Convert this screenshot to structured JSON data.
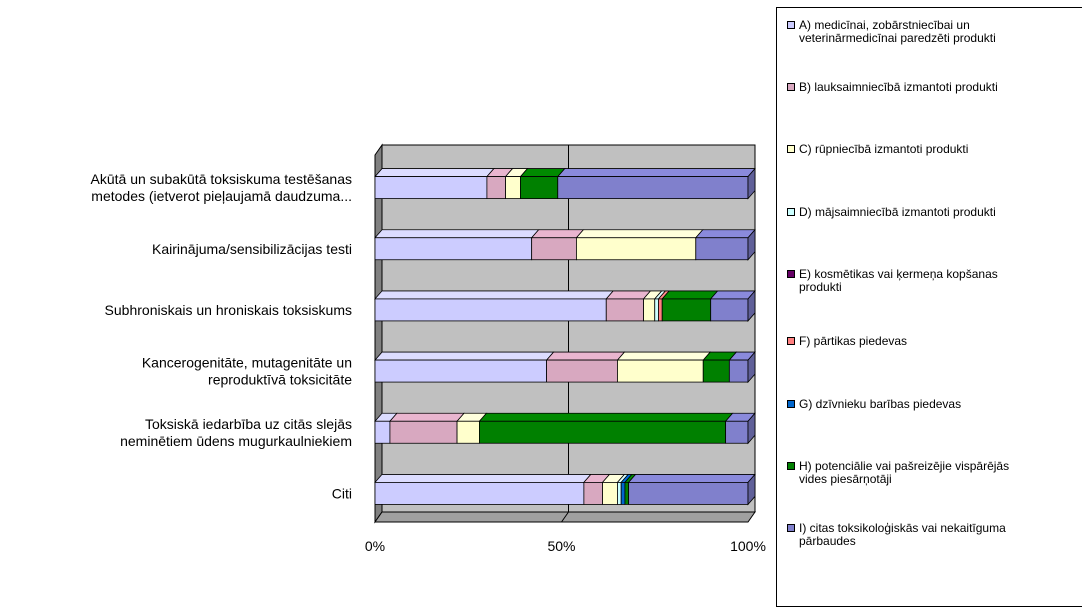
{
  "chart_data": {
    "type": "bar",
    "orientation": "horizontal",
    "stacked": "percent",
    "title": "",
    "xlabel": "",
    "ylabel": "",
    "xlim": [
      0,
      100
    ],
    "x_ticks": [
      "0%",
      "50%",
      "100%"
    ],
    "grid": true,
    "legend_position": "right",
    "categories": [
      "Akūtā un subakūtā toksiskuma testēšanas\nmetodes (ietverot pieļaujamā daudzuma...",
      "Kairinājuma/sensibilizācijas testi",
      "Subhroniskais un hroniskais toksiskums",
      "Kancerogenitāte, mutagenitāte un\nreproduktīvā toksicitāte",
      "Toksiskā iedarbība uz citās slejās\nneminētiem ūdens mugurkaulniekiem",
      "Citi"
    ],
    "series": [
      {
        "name": "A) medicīnai, zobārstniecībai un\nveterinārmedicīnai paredzēti produkti",
        "color": "#ccccff",
        "values": [
          30,
          42,
          62,
          46,
          4,
          56
        ]
      },
      {
        "name": "B) lauksaimniecībā izmantoti produkti",
        "color": "#d8a8c0",
        "values": [
          5,
          12,
          10,
          19,
          18,
          5
        ]
      },
      {
        "name": "C) rūpniecībā izmantoti produkti",
        "color": "#ffffcc",
        "values": [
          4,
          32,
          3,
          23,
          6,
          4
        ]
      },
      {
        "name": "D) mājsaimniecībā izmantoti produkti",
        "color": "#ccffff",
        "values": [
          0,
          0,
          1,
          0,
          0,
          1
        ]
      },
      {
        "name": "E) kosmētikas vai ķermeņa kopšanas\nprodukti",
        "color": "#660066",
        "values": [
          0,
          0,
          0,
          0,
          0,
          0
        ]
      },
      {
        "name": "F) pārtikas piedevas",
        "color": "#ff8080",
        "values": [
          0,
          0,
          1,
          0,
          0,
          0
        ]
      },
      {
        "name": "G) dzīvnieku barības piedevas",
        "color": "#0066cc",
        "values": [
          0,
          0,
          0,
          0,
          0,
          1
        ]
      },
      {
        "name": "H) potenciālie vai pašreizējie vispārējās\nvides piesārņotāji",
        "color": "#008000",
        "values": [
          10,
          0,
          13,
          7,
          66,
          1
        ]
      },
      {
        "name": "I)  citas toksikoloģiskās vai nekaitīguma\npārbaudes",
        "color": "#8080cc",
        "values": [
          51,
          14,
          10,
          5,
          6,
          32
        ]
      }
    ]
  }
}
